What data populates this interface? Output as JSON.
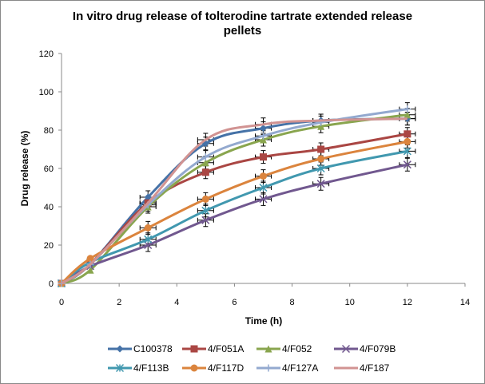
{
  "chart_data": {
    "type": "line",
    "title": "In vitro drug release of tolterodine tartrate extended release pellets",
    "title_lines": [
      "In vitro drug release of tolterodine tartrate extended release",
      "pellets"
    ],
    "xlabel": "Time (h)",
    "ylabel": "Drug release (%)",
    "xlim": [
      0,
      14
    ],
    "ylim": [
      0,
      120
    ],
    "xticks": [
      0,
      2,
      4,
      6,
      8,
      10,
      12,
      14
    ],
    "yticks": [
      0,
      20,
      40,
      60,
      80,
      100,
      120
    ],
    "grid": false,
    "legend_position": "bottom",
    "x": [
      0,
      1,
      3,
      5,
      7,
      9,
      12
    ],
    "series": [
      {
        "name": "C100378",
        "color": "#4572A7",
        "marker": "diamond",
        "values": [
          0,
          10,
          45,
          73,
          81,
          85,
          86
        ]
      },
      {
        "name": "4/F051A",
        "color": "#AA4643",
        "marker": "square",
        "values": [
          0,
          10,
          42,
          58,
          66,
          70,
          78
        ]
      },
      {
        "name": "4/F052",
        "color": "#89A54E",
        "marker": "triangle",
        "values": [
          0,
          7,
          40,
          63,
          75,
          82,
          88
        ]
      },
      {
        "name": "4/F079B",
        "color": "#71588F",
        "marker": "x",
        "values": [
          0,
          9,
          20,
          33,
          44,
          52,
          62
        ]
      },
      {
        "name": "4/F113B",
        "color": "#4198AF",
        "marker": "asterisk",
        "values": [
          0,
          11,
          23,
          38,
          50,
          60,
          69
        ]
      },
      {
        "name": "4/F117D",
        "color": "#DB843D",
        "marker": "circle",
        "values": [
          0,
          13,
          29,
          44,
          56,
          65,
          74
        ]
      },
      {
        "name": "4/F127A",
        "color": "#93A9CF",
        "marker": "plus",
        "values": [
          0,
          10,
          41,
          66,
          77,
          84,
          91
        ]
      },
      {
        "name": "4/F187",
        "color": "#D19392",
        "marker": "none",
        "values": [
          0,
          10,
          42,
          75,
          83,
          85,
          86
        ]
      }
    ]
  }
}
